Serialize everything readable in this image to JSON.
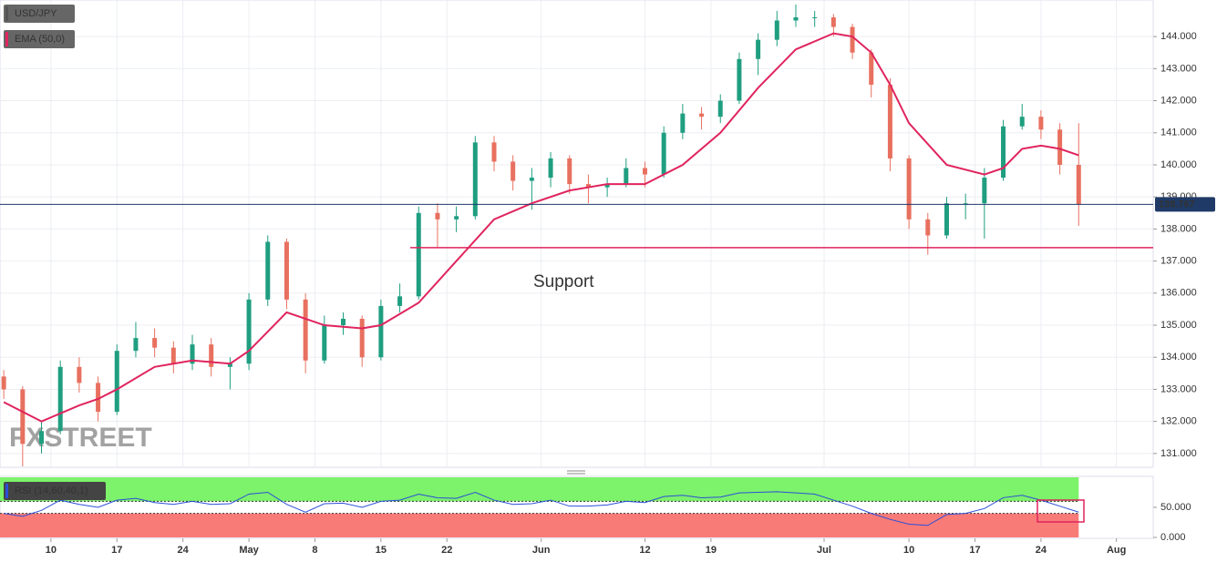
{
  "chart_data": [
    {
      "type": "candlestick",
      "symbol": "USD/JPY",
      "indicator": "EMA (50,0)",
      "watermark": "FXSTREET",
      "up_color": "#1f9e80",
      "down_color": "#e8705f",
      "ema_color": "#e0245e",
      "xlim": [
        3.6,
        125.9
      ],
      "ylim": [
        130.57,
        145.14
      ],
      "yticks": [
        {
          "value": 131,
          "label": "131.000"
        },
        {
          "value": 132,
          "label": "132.000"
        },
        {
          "value": 133,
          "label": "133.000"
        },
        {
          "value": 134,
          "label": "134.000"
        },
        {
          "value": 135,
          "label": "135.000"
        },
        {
          "value": 136,
          "label": "136.000"
        },
        {
          "value": 137,
          "label": "137.000"
        },
        {
          "value": 138,
          "label": "138.000"
        },
        {
          "value": 139,
          "label": "139.000"
        },
        {
          "value": 140,
          "label": "140.000"
        },
        {
          "value": 141,
          "label": "141.000"
        },
        {
          "value": 142,
          "label": "142.000"
        },
        {
          "value": 143,
          "label": "143.000"
        },
        {
          "value": 144,
          "label": "144.000"
        }
      ],
      "grid": true,
      "candles": {
        "x": [
          4,
          6,
          8,
          10,
          12,
          14,
          16,
          18,
          20,
          22,
          24,
          26,
          28,
          30,
          32,
          34,
          36,
          38,
          40,
          42,
          44,
          46,
          48,
          50,
          52,
          54,
          56,
          58,
          60,
          62,
          64,
          66,
          68,
          70,
          72,
          74,
          76,
          78,
          80,
          82,
          84,
          86,
          88,
          90,
          92,
          94,
          96,
          98,
          100,
          102,
          104,
          106,
          108,
          110,
          112,
          114,
          116,
          118
        ],
        "open": [
          133.4,
          133.0,
          131.3,
          131.7,
          133.7,
          133.2,
          132.3,
          134.2,
          134.6,
          134.3,
          133.8,
          134.4,
          133.7,
          133.8,
          135.8,
          137.6,
          135.8,
          133.9,
          135.0,
          135.2,
          134.0,
          135.6,
          135.9,
          138.5,
          138.3,
          138.4,
          140.7,
          140.1,
          139.5,
          139.6,
          140.2,
          139.4,
          139.3,
          139.4,
          139.9,
          139.7,
          141.0,
          141.6,
          141.5,
          142.0,
          143.3,
          143.9,
          144.5,
          144.6,
          144.6,
          144.3,
          143.5,
          142.5,
          140.2,
          138.3,
          137.8,
          138.8,
          138.8,
          139.6,
          141.2,
          141.5,
          141.1,
          140.0
        ],
        "high": [
          133.6,
          133.1,
          132.0,
          133.9,
          134.0,
          133.4,
          134.4,
          135.1,
          134.9,
          134.5,
          134.7,
          134.6,
          134.0,
          136.0,
          137.8,
          137.7,
          136.0,
          135.3,
          135.4,
          135.3,
          135.8,
          136.3,
          138.7,
          138.8,
          138.7,
          140.9,
          140.9,
          140.3,
          139.9,
          140.4,
          140.3,
          139.7,
          139.6,
          140.2,
          140.1,
          141.2,
          141.9,
          141.8,
          142.2,
          143.5,
          144.1,
          144.8,
          145.0,
          144.8,
          144.7,
          144.4,
          143.6,
          142.7,
          140.3,
          138.5,
          139.0,
          139.1,
          139.9,
          141.4,
          141.9,
          141.7,
          141.3,
          141.3
        ],
        "low": [
          132.7,
          130.6,
          131.0,
          131.6,
          132.9,
          132.0,
          132.2,
          134.0,
          134.0,
          133.5,
          133.6,
          133.4,
          133.0,
          133.6,
          135.6,
          135.5,
          133.5,
          133.8,
          134.7,
          133.7,
          133.9,
          135.4,
          135.8,
          137.4,
          137.9,
          138.3,
          139.8,
          139.2,
          138.6,
          139.3,
          139.1,
          138.8,
          139.0,
          139.3,
          139.3,
          139.6,
          140.8,
          141.1,
          141.3,
          141.9,
          142.8,
          143.7,
          144.3,
          144.3,
          144.0,
          143.3,
          142.1,
          139.8,
          138.0,
          137.2,
          137.7,
          138.3,
          137.7,
          139.5,
          141.1,
          140.8,
          139.7,
          138.1
        ],
        "close": [
          133.0,
          131.3,
          131.7,
          133.7,
          133.2,
          132.3,
          134.2,
          134.6,
          134.3,
          133.8,
          134.4,
          133.7,
          133.8,
          135.8,
          137.6,
          135.8,
          133.9,
          135.0,
          135.2,
          134.0,
          135.6,
          135.9,
          138.5,
          138.3,
          138.4,
          140.7,
          140.1,
          139.5,
          139.6,
          140.2,
          139.4,
          139.3,
          139.4,
          139.9,
          139.7,
          141.0,
          141.6,
          141.5,
          142.0,
          143.3,
          143.9,
          144.5,
          144.6,
          144.6,
          144.3,
          143.5,
          142.5,
          140.2,
          138.3,
          137.8,
          138.8,
          138.8,
          139.6,
          141.2,
          141.5,
          141.1,
          140.0,
          138.77
        ]
      },
      "ema": {
        "x": [
          4,
          8,
          12,
          14,
          16,
          20,
          24,
          28,
          30,
          34,
          38,
          42,
          44,
          48,
          52,
          56,
          60,
          64,
          68,
          72,
          76,
          80,
          84,
          88,
          92,
          94,
          96,
          98,
          100,
          104,
          108,
          110,
          112,
          114,
          116,
          118
        ],
        "values": [
          132.6,
          132.0,
          132.5,
          132.7,
          133.0,
          133.7,
          133.9,
          133.8,
          134.2,
          135.4,
          135.0,
          134.9,
          135.0,
          135.7,
          137.0,
          138.3,
          138.8,
          139.2,
          139.4,
          139.4,
          140.0,
          141.0,
          142.4,
          143.6,
          144.1,
          144.0,
          143.5,
          142.5,
          141.3,
          140.0,
          139.7,
          139.9,
          140.5,
          140.6,
          140.5,
          140.3
        ]
      },
      "support": {
        "label": "Support",
        "value": 137.42
      },
      "last_price": {
        "value": 138.767,
        "label": "138.767"
      }
    },
    {
      "type": "rsi",
      "indicator": "RSI (14,60,40,1)",
      "color": "#2b4fd8",
      "upper_level": 60,
      "lower_level": 40,
      "upper_color": "#7df26b",
      "lower_color": "#f87b78",
      "xlim": [
        3.6,
        125.9
      ],
      "ylim": [
        0,
        100
      ],
      "yticks": [
        {
          "value": 0,
          "label": "0.000"
        },
        {
          "value": 50,
          "label": "50.000"
        }
      ],
      "xticks": [
        {
          "value": 9,
          "label": "10"
        },
        {
          "value": 16,
          "label": "17"
        },
        {
          "value": 23,
          "label": "24"
        },
        {
          "value": 30,
          "label": "May"
        },
        {
          "value": 37,
          "label": "8"
        },
        {
          "value": 44,
          "label": "15"
        },
        {
          "value": 51,
          "label": "22"
        },
        {
          "value": 61,
          "label": "Jun"
        },
        {
          "value": 72,
          "label": "12"
        },
        {
          "value": 79,
          "label": "19"
        },
        {
          "value": 91,
          "label": "Jul"
        },
        {
          "value": 100,
          "label": "10"
        },
        {
          "value": 107,
          "label": "17"
        },
        {
          "value": 114,
          "label": "24"
        },
        {
          "value": 122,
          "label": "Aug"
        }
      ],
      "x": [
        4,
        6,
        8,
        10,
        12,
        14,
        16,
        18,
        20,
        22,
        24,
        26,
        28,
        30,
        32,
        34,
        36,
        38,
        40,
        42,
        44,
        46,
        48,
        50,
        52,
        54,
        56,
        58,
        60,
        62,
        64,
        66,
        68,
        70,
        72,
        74,
        76,
        78,
        80,
        82,
        84,
        86,
        88,
        90,
        92,
        94,
        96,
        98,
        100,
        102,
        104,
        106,
        108,
        110,
        112,
        114,
        116,
        118
      ],
      "values": [
        40,
        35,
        45,
        62,
        55,
        50,
        62,
        65,
        58,
        55,
        60,
        55,
        56,
        72,
        75,
        55,
        42,
        56,
        57,
        50,
        60,
        62,
        72,
        66,
        65,
        75,
        62,
        55,
        56,
        62,
        52,
        52,
        54,
        60,
        58,
        68,
        70,
        66,
        67,
        74,
        75,
        76,
        74,
        72,
        62,
        52,
        40,
        30,
        22,
        20,
        38,
        40,
        48,
        66,
        70,
        62,
        52,
        42
      ]
    }
  ]
}
